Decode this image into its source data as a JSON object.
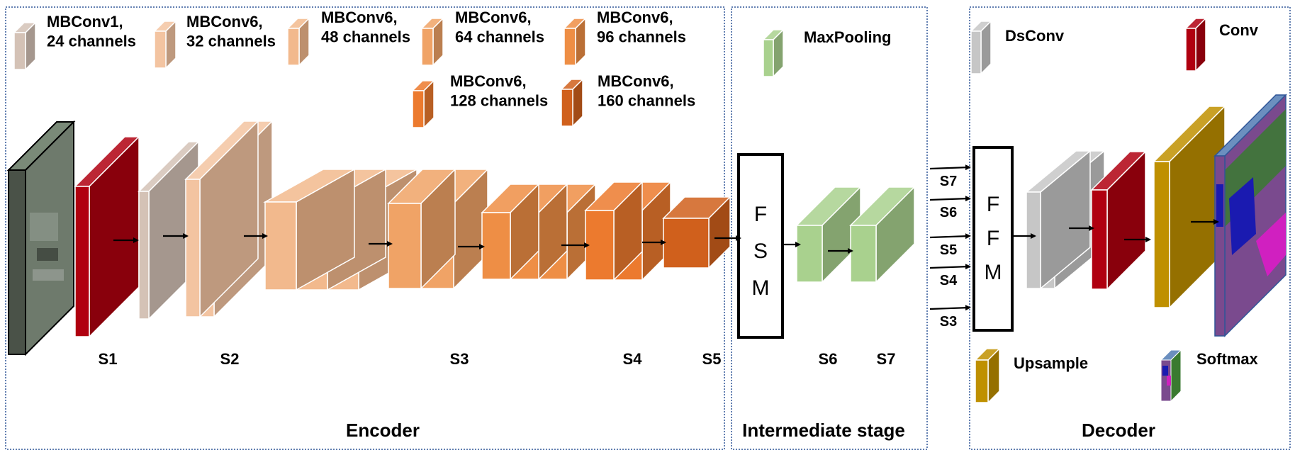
{
  "colors": {
    "mbconv1_24": "#d4c2b6",
    "mbconv6_32": "#f3c4a1",
    "mbconv6_48": "#f2b98d",
    "mbconv6_64": "#f0a366",
    "mbconv6_96": "#ee8e45",
    "mbconv6_128": "#ec7a2e",
    "mbconv6_160": "#d0601c",
    "conv": "#b00010",
    "maxpool": "#a9d18e",
    "dsconv": "#c6c6c6",
    "upsample": "#bf9000",
    "stage_border": "#2f5597",
    "input_image": "#4a5248",
    "softmax_purple": "#7a4a8e",
    "softmax_blue": "#1a1ab0",
    "softmax_green": "#3a7a30",
    "softmax_magenta": "#d020c0"
  },
  "legend": {
    "mbconv1_24": "MBConv1,\n24 channels",
    "mbconv6_32": "MBConv6,\n32 channels",
    "mbconv6_48": "MBConv6,\n48 channels",
    "mbconv6_64": "MBConv6,\n64 channels",
    "mbconv6_96": "MBConv6,\n96 channels",
    "mbconv6_128": "MBConv6,\n128 channels",
    "mbconv6_160": "MBConv6,\n160 channels",
    "maxpool": "MaxPooling",
    "dsconv": "DsConv",
    "conv": "Conv",
    "upsample": "Upsample",
    "softmax": "Softmax"
  },
  "stages": {
    "encoder": "Encoder",
    "intermediate": "Intermediate stage",
    "decoder": "Decoder"
  },
  "stage_labels": {
    "s1": "S1",
    "s2": "S2",
    "s3": "S3",
    "s4": "S4",
    "s5": "S5",
    "s6": "S6",
    "s7": "S7"
  },
  "fsm_letters": [
    "F",
    "S",
    "M"
  ],
  "ffm_letters": [
    "F",
    "F",
    "M"
  ],
  "skip_labels": [
    "S7",
    "S6",
    "S5",
    "S4",
    "S3"
  ]
}
